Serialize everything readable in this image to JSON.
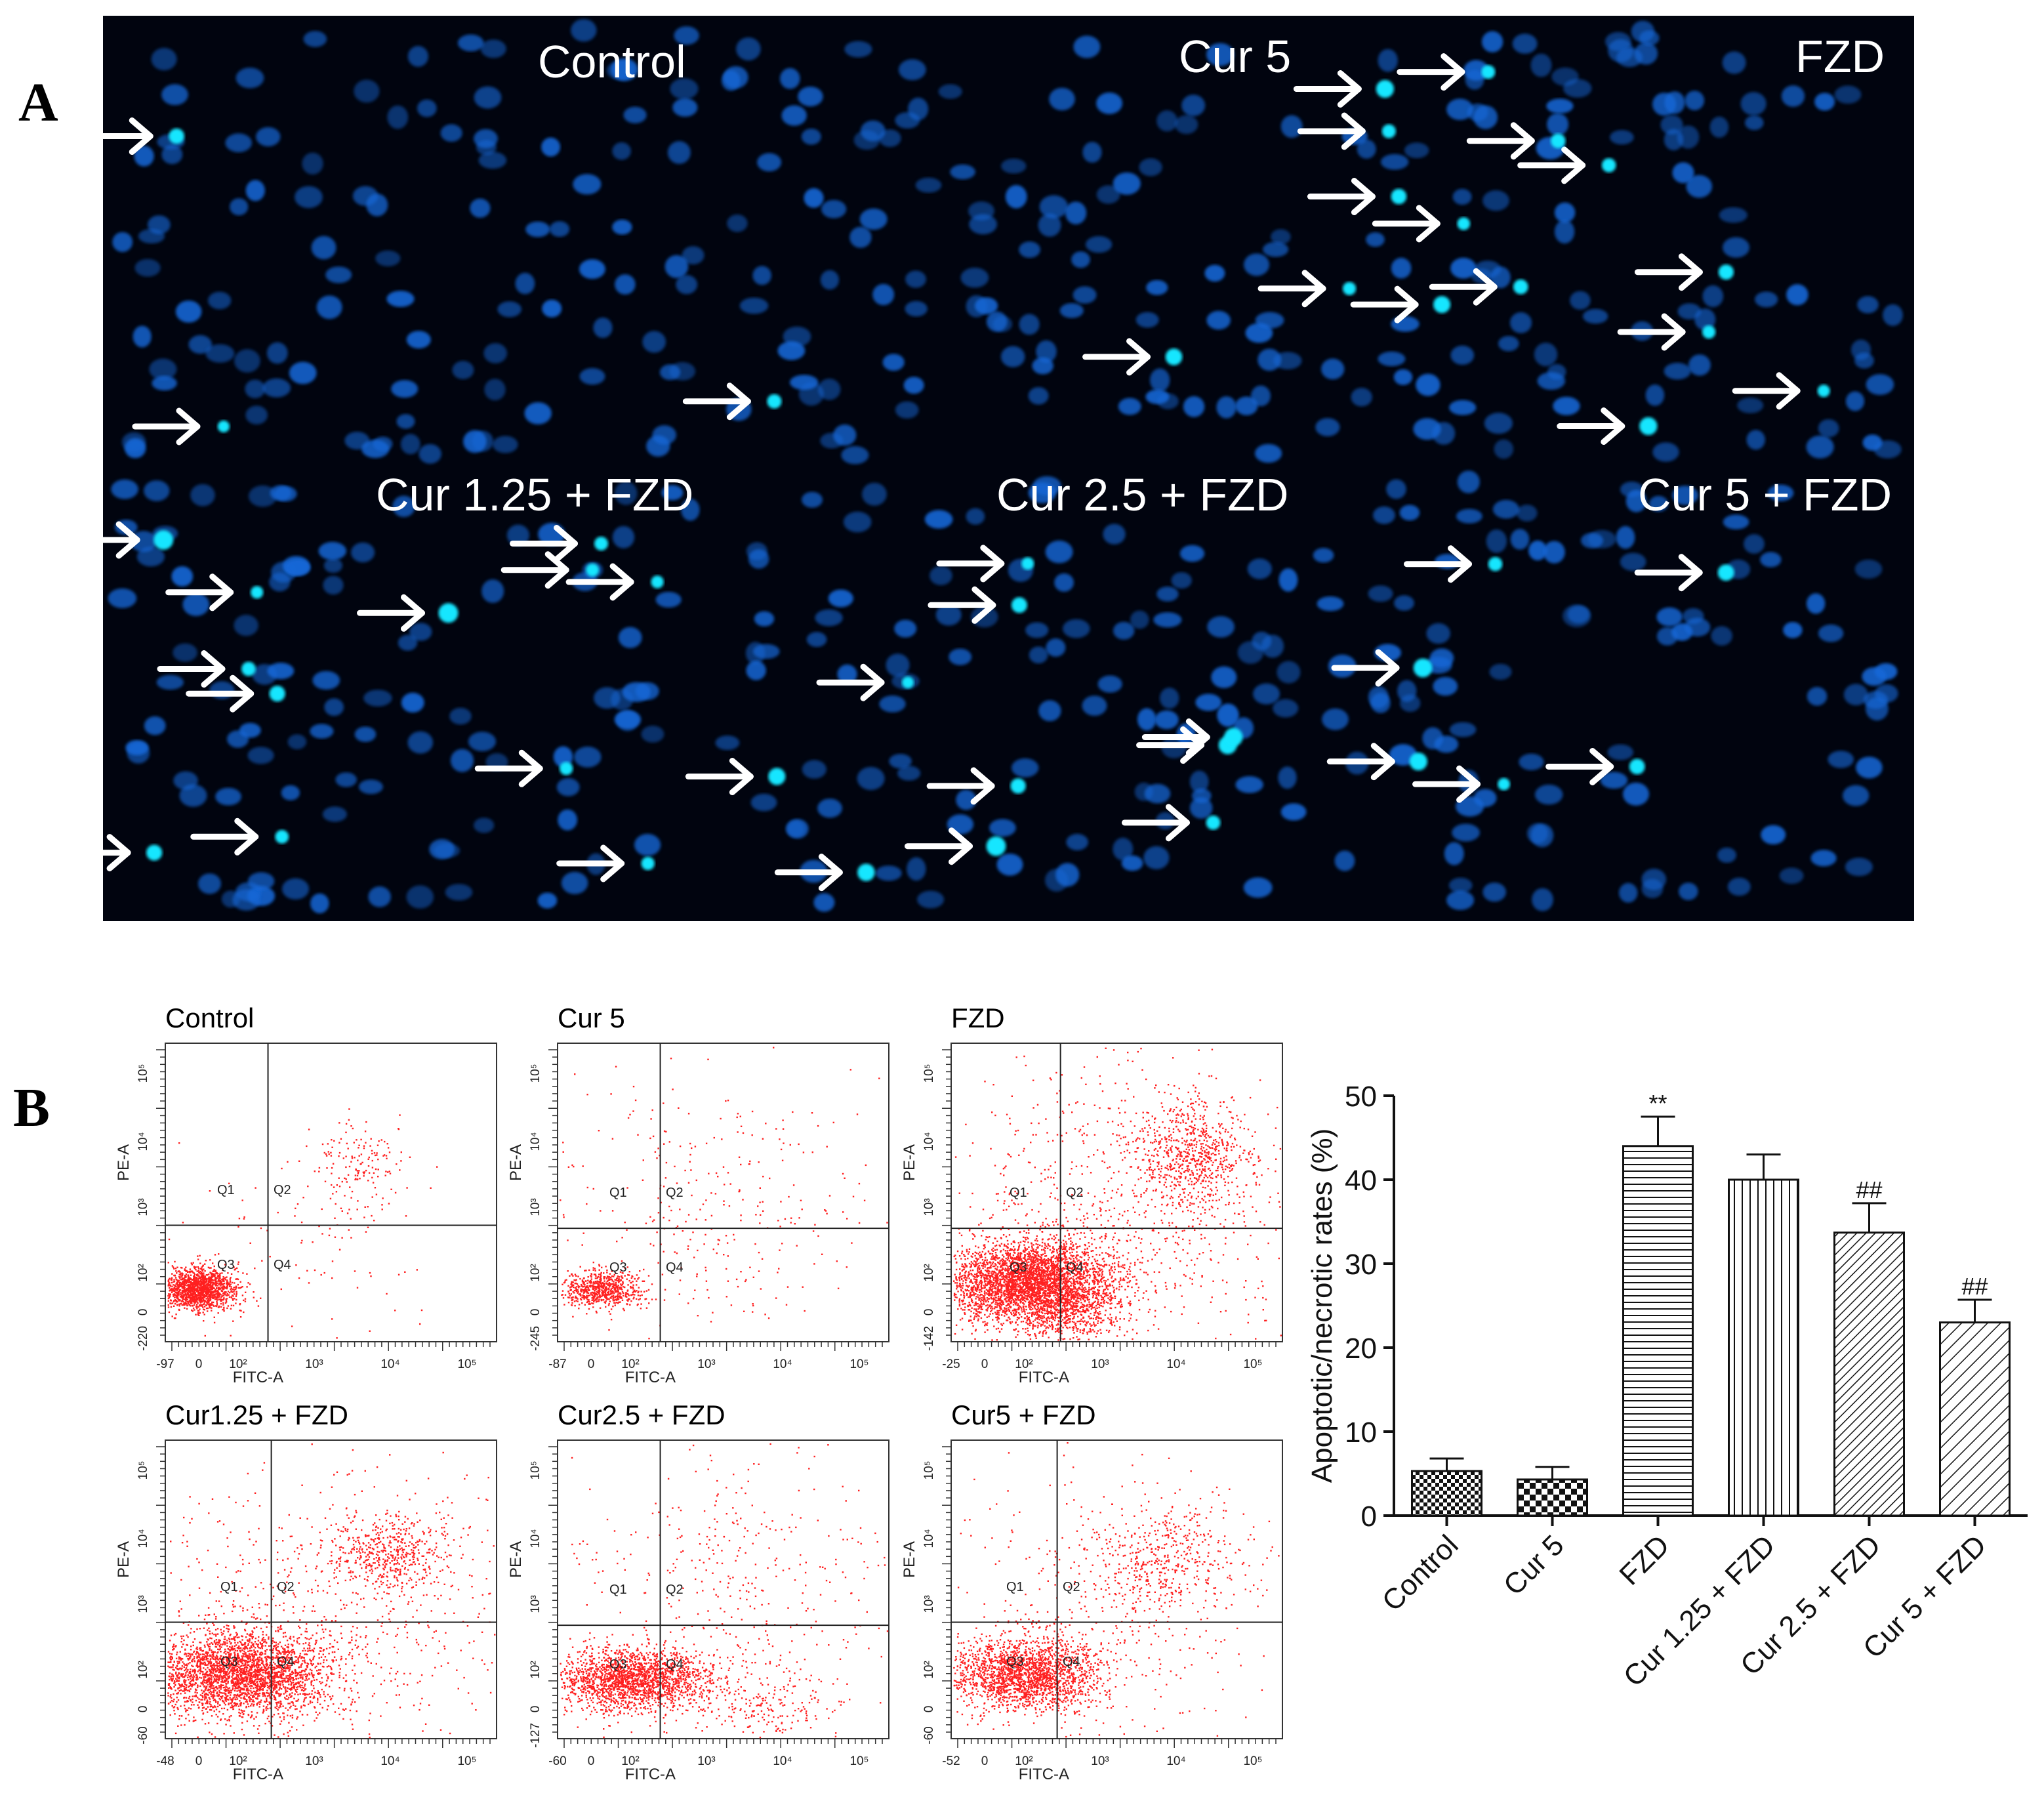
{
  "figure": {
    "panel_a_label": "A",
    "panel_b_label": "B"
  },
  "panel_a": {
    "images": [
      {
        "label": "Control"
      },
      {
        "label": "Cur 5"
      },
      {
        "label": "FZD"
      },
      {
        "label": "Cur 1.25 + FZD"
      },
      {
        "label": "Cur 2.5 + FZD"
      },
      {
        "label": "Cur 5 + FZD"
      }
    ],
    "colors": {
      "nucleus": "#1668d8",
      "apoptotic": "#19e6ff",
      "arrow": "#ffffff",
      "background": "#01040f"
    }
  },
  "flow_cytometry": {
    "x_axis_label": "FITC-A",
    "y_axis_label": "PE-A",
    "quadrants": [
      "Q1",
      "Q2",
      "Q3",
      "Q4"
    ],
    "dot_color": "#ff2020",
    "plots": [
      {
        "title": "Control",
        "x_min": "-97",
        "y_min": "-220"
      },
      {
        "title": "Cur 5",
        "x_min": "-87",
        "y_min": "-245"
      },
      {
        "title": "FZD",
        "x_min": "-25",
        "y_min": "-142"
      },
      {
        "title": "Cur1.25 + FZD",
        "x_min": "-48",
        "y_min": "-60"
      },
      {
        "title": "Cur2.5 + FZD",
        "x_min": "-60",
        "y_min": "-127"
      },
      {
        "title": "Cur5 + FZD",
        "x_min": "-52",
        "y_min": "-60"
      }
    ]
  },
  "chart_data": {
    "type": "bar",
    "title": "",
    "xlabel": "",
    "ylabel": "Apoptotic/necrotic rates  (%)",
    "ylim": [
      0,
      50
    ],
    "yticks": [
      0,
      10,
      20,
      30,
      40,
      50
    ],
    "categories": [
      "Control",
      "Cur 5",
      "FZD",
      "Cur 1.25 + FZD",
      "Cur 2.5 + FZD",
      "Cur 5 + FZD"
    ],
    "values": [
      5.3,
      4.3,
      44.0,
      40.0,
      33.7,
      23.0
    ],
    "errors": [
      1.5,
      1.5,
      3.5,
      3.0,
      3.5,
      2.7
    ],
    "annotations": [
      "",
      "",
      "**",
      "",
      "##",
      "##"
    ],
    "patterns": [
      "checker-small",
      "checker-large",
      "horizontal",
      "vertical",
      "diagonal-dense",
      "diagonal-sparse"
    ]
  }
}
